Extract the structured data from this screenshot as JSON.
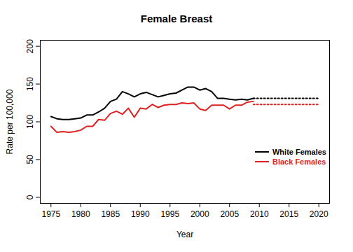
{
  "chart_data": {
    "type": "line",
    "title": "Female Breast",
    "x_label": "Year",
    "y_label": "Rate per 100,000",
    "x": [
      1975,
      1976,
      1977,
      1978,
      1979,
      1980,
      1981,
      1982,
      1983,
      1984,
      1985,
      1986,
      1987,
      1988,
      1989,
      1990,
      1991,
      1992,
      1993,
      1994,
      1995,
      1996,
      1997,
      1998,
      1999,
      2000,
      2001,
      2002,
      2003,
      2004,
      2005,
      2006,
      2007,
      2008,
      2009
    ],
    "series": [
      {
        "name": "White Females",
        "color": "#000000",
        "line_style": "solid",
        "values": [
          107,
          104,
          103,
          103,
          104,
          105,
          109,
          109,
          113,
          118,
          127,
          130,
          140,
          137,
          133,
          137,
          139,
          136,
          133,
          135,
          137,
          138,
          142,
          146,
          146,
          142,
          144,
          140,
          131,
          131,
          130,
          129,
          130,
          129,
          131
        ],
        "projection": {
          "x": [
            2009,
            2020
          ],
          "values": [
            131,
            131
          ],
          "line_style": "dotted"
        }
      },
      {
        "name": "Black Females",
        "color": "#dd2222",
        "line_style": "solid",
        "values": [
          94,
          86,
          87,
          86,
          87,
          89,
          94,
          94,
          103,
          102,
          111,
          114,
          110,
          118,
          106,
          118,
          117,
          123,
          119,
          122,
          123,
          123,
          125,
          124,
          125,
          117,
          115,
          122,
          122,
          122,
          117,
          122,
          122,
          126,
          127
        ],
        "projection": {
          "x": [
            2009,
            2020
          ],
          "values": [
            123,
            123
          ],
          "line_style": "dotted"
        }
      }
    ],
    "xlim": [
      1973.2,
      2021.8
    ],
    "xticks": [
      1975,
      1980,
      1985,
      1990,
      1995,
      2000,
      2005,
      2010,
      2015,
      2020
    ],
    "ylim": [
      -8,
      208
    ],
    "yticks": [
      0,
      50,
      100,
      150,
      200
    ],
    "grid": false,
    "legend": "bottom-right"
  }
}
